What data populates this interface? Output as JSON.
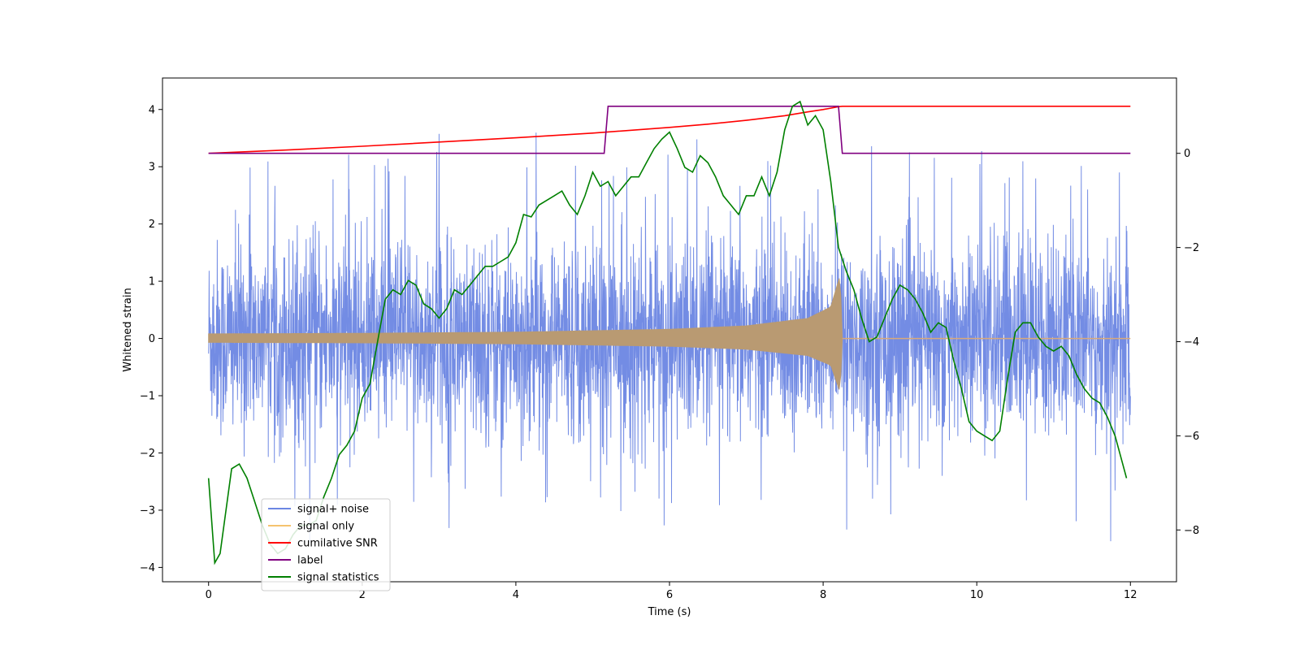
{
  "chart_data": {
    "type": "line",
    "xlabel": "Time (s)",
    "ylabel_left": "Whitened strain",
    "ylabel_right": "",
    "xlim": [
      -0.6,
      12.6
    ],
    "ylim_left": [
      -4.25,
      4.55
    ],
    "ylim_right": [
      -9.1,
      1.6
    ],
    "x_ticks": [
      0,
      2,
      4,
      6,
      8,
      10,
      12
    ],
    "x_tick_labels": [
      "0",
      "2",
      "4",
      "6",
      "8",
      "10",
      "12"
    ],
    "y_ticks_left": [
      -4,
      -3,
      -2,
      -1,
      0,
      1,
      2,
      3,
      4
    ],
    "y_tick_labels_left": [
      "−4",
      "−3",
      "−2",
      "−1",
      "0",
      "1",
      "2",
      "3",
      "4"
    ],
    "y_ticks_right": [
      -8,
      -6,
      -4,
      -2,
      0
    ],
    "y_tick_labels_right": [
      "−8",
      "−6",
      "−4",
      "−2",
      "0"
    ],
    "legend_position": "lower-left",
    "series": [
      {
        "name": "signal+ noise",
        "axis": "left",
        "color": "#6b86e3",
        "kind": "noise",
        "x_range": [
          0,
          12
        ],
        "envelope_typical": 1.4,
        "spike_max": 3.75,
        "spike_min": -3.8
      },
      {
        "name": "signal only",
        "axis": "left",
        "color": "#f5c36e",
        "kind": "chirp",
        "x_range": [
          0,
          8.25
        ],
        "amplitude_points": [
          [
            0,
            0.08
          ],
          [
            2,
            0.09
          ],
          [
            4,
            0.11
          ],
          [
            6,
            0.16
          ],
          [
            7,
            0.22
          ],
          [
            7.8,
            0.35
          ],
          [
            8.1,
            0.55
          ],
          [
            8.22,
            1.1
          ],
          [
            8.25,
            0.0
          ]
        ]
      },
      {
        "name": "cumilative SNR",
        "axis": "right",
        "color": "#ff0000",
        "x": [
          0,
          1,
          2,
          3,
          4,
          5,
          6,
          6.5,
          7,
          7.5,
          7.8,
          8.0,
          8.1,
          8.2,
          8.25,
          12
        ],
        "values": [
          0,
          0.07,
          0.15,
          0.24,
          0.33,
          0.43,
          0.55,
          0.62,
          0.7,
          0.8,
          0.88,
          0.93,
          0.96,
          0.99,
          1.0,
          1.0
        ]
      },
      {
        "name": "label",
        "axis": "right",
        "color": "#800080",
        "x": [
          0,
          5.15,
          5.2,
          8.2,
          8.25,
          12
        ],
        "values": [
          0,
          0,
          1,
          1,
          0,
          0
        ]
      },
      {
        "name": "signal statistics",
        "axis": "right",
        "color": "#008000",
        "x": [
          0,
          0.08,
          0.15,
          0.3,
          0.4,
          0.5,
          0.6,
          0.7,
          0.8,
          0.9,
          1.0,
          1.1,
          1.2,
          1.3,
          1.4,
          1.5,
          1.6,
          1.7,
          1.8,
          1.9,
          2.0,
          2.1,
          2.2,
          2.3,
          2.4,
          2.5,
          2.6,
          2.7,
          2.8,
          2.9,
          3.0,
          3.1,
          3.2,
          3.3,
          3.4,
          3.5,
          3.6,
          3.7,
          3.8,
          3.9,
          4.0,
          4.1,
          4.2,
          4.3,
          4.4,
          4.5,
          4.6,
          4.7,
          4.8,
          4.9,
          5.0,
          5.1,
          5.2,
          5.3,
          5.4,
          5.5,
          5.6,
          5.7,
          5.8,
          5.9,
          6.0,
          6.1,
          6.2,
          6.3,
          6.4,
          6.5,
          6.6,
          6.7,
          6.8,
          6.9,
          7.0,
          7.1,
          7.2,
          7.3,
          7.4,
          7.5,
          7.6,
          7.7,
          7.8,
          7.9,
          8.0,
          8.1,
          8.2,
          8.3,
          8.4,
          8.5,
          8.6,
          8.7,
          8.8,
          8.9,
          9.0,
          9.1,
          9.2,
          9.3,
          9.4,
          9.5,
          9.6,
          9.7,
          9.8,
          9.9,
          10.0,
          10.1,
          10.2,
          10.3,
          10.4,
          10.5,
          10.6,
          10.7,
          10.8,
          10.9,
          11.0,
          11.1,
          11.2,
          11.3,
          11.4,
          11.5,
          11.6,
          11.7,
          11.8,
          11.9,
          11.95
        ],
        "values": [
          -6.9,
          -8.7,
          -8.5,
          -6.7,
          -6.6,
          -6.9,
          -7.4,
          -7.9,
          -8.3,
          -8.5,
          -8.4,
          -8.1,
          -7.9,
          -7.9,
          -7.8,
          -7.3,
          -6.9,
          -6.4,
          -6.2,
          -5.9,
          -5.2,
          -4.9,
          -4.0,
          -3.1,
          -2.9,
          -3.0,
          -2.7,
          -2.8,
          -3.2,
          -3.3,
          -3.5,
          -3.3,
          -2.9,
          -3.0,
          -2.8,
          -2.6,
          -2.4,
          -2.4,
          -2.3,
          -2.2,
          -1.9,
          -1.3,
          -1.35,
          -1.1,
          -1.0,
          -0.9,
          -0.8,
          -1.1,
          -1.3,
          -0.9,
          -0.4,
          -0.7,
          -0.6,
          -0.9,
          -0.7,
          -0.5,
          -0.5,
          -0.2,
          0.1,
          0.3,
          0.45,
          0.1,
          -0.3,
          -0.4,
          -0.05,
          -0.2,
          -0.5,
          -0.9,
          -1.1,
          -1.3,
          -0.9,
          -0.9,
          -0.5,
          -0.9,
          -0.4,
          0.5,
          1.0,
          1.1,
          0.6,
          0.8,
          0.5,
          -0.6,
          -2.0,
          -2.5,
          -2.9,
          -3.5,
          -4.0,
          -3.9,
          -3.5,
          -3.1,
          -2.8,
          -2.9,
          -3.1,
          -3.4,
          -3.8,
          -3.6,
          -3.7,
          -4.4,
          -5.0,
          -5.7,
          -5.9,
          -6.0,
          -6.1,
          -5.9,
          -4.8,
          -3.8,
          -3.6,
          -3.6,
          -3.9,
          -4.1,
          -4.2,
          -4.1,
          -4.3,
          -4.7,
          -5.0,
          -5.2,
          -5.3,
          -5.6,
          -6.0,
          -6.6,
          -6.9
        ]
      }
    ]
  }
}
